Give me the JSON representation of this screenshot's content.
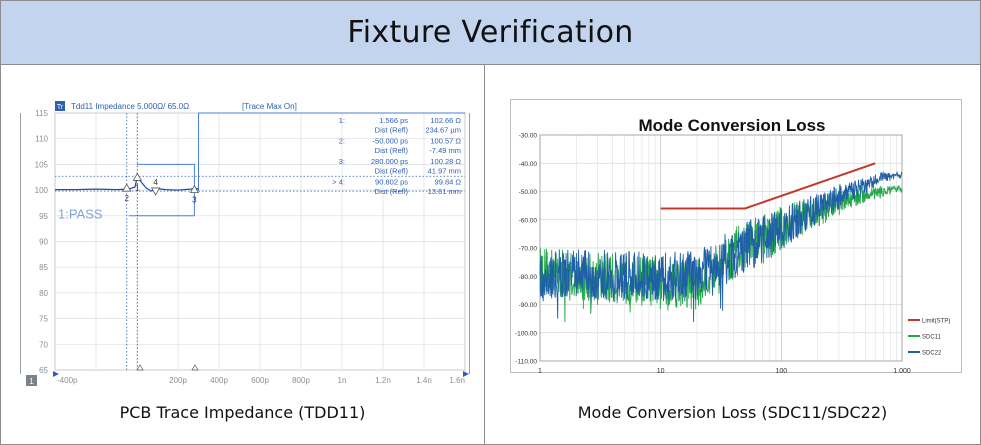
{
  "header": {
    "title": "Fixture Verification"
  },
  "captions": {
    "left": "PCB Trace Impedance (TDD11)",
    "right": "Mode Conversion Loss (SDC11/SDC22)"
  },
  "chart_data": [
    {
      "type": "line",
      "title": "",
      "trace_label": "Tdd11 Impedance 5.000Ω/ 65.0Ω",
      "trace_status": "[Trace Max On]",
      "channel_badge": "Tr",
      "window_badge": "1",
      "pass_label": "1:PASS",
      "xlabel": "",
      "ylabel": "",
      "xlim": [
        -400,
        1600
      ],
      "ylim": [
        65,
        115
      ],
      "x_unit": "ps",
      "y_unit": "Ω",
      "x_tick_labels": [
        "-400p",
        "200p",
        "400p",
        "600p",
        "800p",
        "1n",
        "1.2n",
        "1.4n",
        "1.6n"
      ],
      "y_tick_labels": [
        "115",
        "110",
        "105",
        "100",
        "95",
        "90",
        "85",
        "80",
        "75",
        "70",
        "65"
      ],
      "series": [
        {
          "x": [
            -400,
            -300,
            -200,
            -100,
            -40,
            -10,
            1.6,
            20,
            45,
            70,
            100,
            140,
            200,
            260,
            280,
            300
          ],
          "y": [
            100.1,
            100.1,
            100.2,
            100.1,
            100.2,
            100.6,
            102.7,
            101.6,
            100.4,
            99.8,
            100.3,
            100.1,
            100.0,
            100.2,
            100.3,
            100.3
          ]
        }
      ],
      "limit_line": {
        "x": [
          0,
          280,
          280,
          280,
          300,
          300,
          1600
        ],
        "y": [
          105,
          105,
          95,
          100,
          100,
          115,
          115
        ]
      },
      "dotted_levels": [
        102.7,
        99.8
      ],
      "markers": [
        {
          "id": "1",
          "x_ps": 1.566,
          "x_label": "1.566 ps",
          "value": "102.66 Ω",
          "dist_label": "Dist (Refl)",
          "dist": "234.67 µm"
        },
        {
          "id": "2",
          "x_ps": -50.0,
          "x_label": "-50.000 ps",
          "value": "100.57 Ω",
          "dist_label": "Dist (Refl)",
          "dist": "-7.49 mm"
        },
        {
          "id": "3",
          "x_ps": 280.0,
          "x_label": "280.000 ps",
          "value": "100.28 Ω",
          "dist_label": "Dist (Refl)",
          "dist": "41.97 mm"
        },
        {
          "id": "> 4",
          "x_ps": 90.802,
          "x_label": "90.802 ps",
          "value": "99.84 Ω",
          "dist_label": "Dist (Refl)",
          "dist": "13.61 mm"
        }
      ],
      "marker_ids": [
        "1",
        "2",
        "3",
        "4"
      ]
    },
    {
      "type": "line",
      "title": "Mode Conversion Loss",
      "xlabel": "",
      "ylabel": "",
      "x_scale": "log",
      "xlim": [
        1,
        1000
      ],
      "ylim": [
        -110,
        -30
      ],
      "x_tick_labels": [
        "1",
        "10",
        "100",
        "1,000"
      ],
      "y_tick_labels": [
        "-30.00",
        "-40.00",
        "-50.00",
        "-60.00",
        "-70.00",
        "-80.00",
        "-90.00",
        "-100.00",
        "-110.00"
      ],
      "grid": true,
      "legend_position": "right",
      "series": [
        {
          "name": "Limit(STP)",
          "color": "#c0392b",
          "x": [
            10,
            50,
            600
          ],
          "y": [
            -56,
            -56,
            -40
          ]
        },
        {
          "name": "SDC11",
          "color": "#22a84a",
          "x": [
            1,
            2,
            5,
            10,
            20,
            40,
            60,
            80,
            100,
            150,
            200,
            300,
            500,
            700,
            1000
          ],
          "y": [
            -78,
            -80,
            -81,
            -82,
            -83,
            -72,
            -68,
            -66,
            -63,
            -59,
            -57,
            -54,
            -51,
            -50,
            -49
          ]
        },
        {
          "name": "SDC22",
          "color": "#1f5fa8",
          "x": [
            1,
            2,
            5,
            10,
            20,
            40,
            60,
            80,
            100,
            150,
            200,
            300,
            500,
            700,
            1000
          ],
          "y": [
            -80,
            -79,
            -80,
            -80,
            -80,
            -72,
            -68,
            -66,
            -63,
            -59,
            -56,
            -52,
            -48,
            -45,
            -44
          ]
        }
      ]
    }
  ]
}
